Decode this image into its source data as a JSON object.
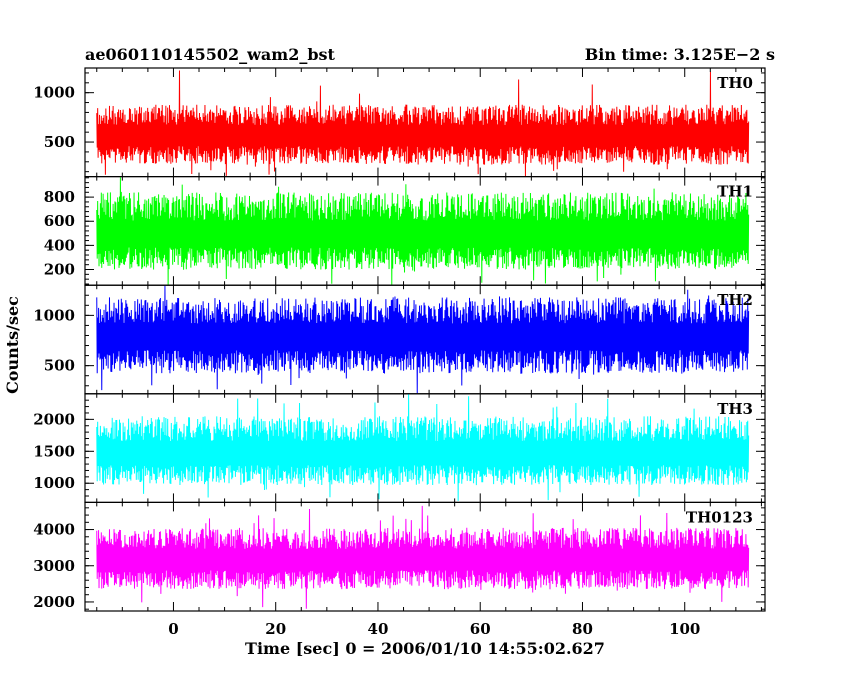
{
  "chart_data": {
    "type": "line",
    "title_left": "ae060110145502_wam2_bst",
    "title_right": "Bin time: 3.125E−2 s",
    "xlabel": "Time [sec] 0 = 2006/01/10 14:55:02.627",
    "ylabel": "Counts/sec",
    "xlim": [
      -17.3,
      115.7
    ],
    "data_x_range": [
      -15.0,
      112.5
    ],
    "x_ticks": [
      0,
      20,
      40,
      60,
      80,
      100
    ],
    "x_tick_labels": [
      "0",
      "20",
      "40",
      "60",
      "80",
      "100"
    ],
    "panels": [
      {
        "name": "TH0",
        "color": "#ff0000",
        "ylim": [
          150,
          1250
        ],
        "y_ticks": [
          500,
          1000
        ],
        "y_tick_labels": [
          "500",
          "1000"
        ],
        "typical_min": 270,
        "typical_max": 880,
        "mean": 560,
        "peak_max": 1250,
        "trough_min": 150
      },
      {
        "name": "TH1",
        "color": "#00ff00",
        "ylim": [
          70,
          970
        ],
        "y_ticks": [
          200,
          400,
          600,
          800
        ],
        "y_tick_labels": [
          "200",
          "400",
          "600",
          "800"
        ],
        "typical_min": 200,
        "typical_max": 840,
        "mean": 480,
        "peak_max": 970,
        "trough_min": 70
      },
      {
        "name": "TH2",
        "color": "#0000ff",
        "ylim": [
          220,
          1300
        ],
        "y_ticks": [
          500,
          1000
        ],
        "y_tick_labels": [
          "500",
          "1000"
        ],
        "typical_min": 420,
        "typical_max": 1180,
        "mean": 780,
        "peak_max": 1300,
        "trough_min": 220
      },
      {
        "name": "TH3",
        "color": "#00ffff",
        "ylim": [
          700,
          2400
        ],
        "y_ticks": [
          1000,
          1500,
          2000
        ],
        "y_tick_labels": [
          "1000",
          "1500",
          "2000"
        ],
        "typical_min": 970,
        "typical_max": 2050,
        "mean": 1450,
        "peak_max": 2400,
        "trough_min": 700
      },
      {
        "name": "TH0123",
        "color": "#ff00ff",
        "ylim": [
          1750,
          4750
        ],
        "y_ticks": [
          2000,
          3000,
          4000
        ],
        "y_tick_labels": [
          "2000",
          "3000",
          "4000"
        ],
        "typical_min": 2350,
        "typical_max": 4050,
        "mean": 3150,
        "peak_max": 4700,
        "trough_min": 1800
      }
    ]
  }
}
